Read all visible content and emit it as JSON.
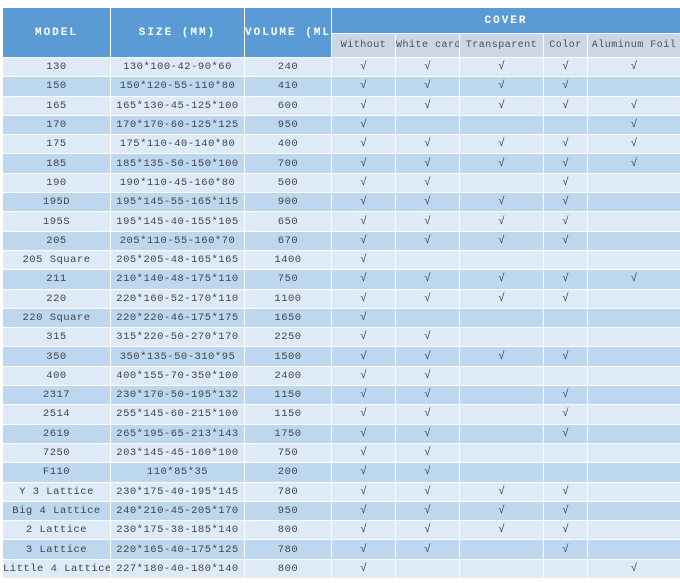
{
  "table": {
    "headers": {
      "model": "MODEL",
      "size": "SIZE (MM)",
      "volume": "VOLUME (ML)",
      "cover": "COVER",
      "cover_options": [
        "Without",
        "White card",
        "Transparent",
        "Color",
        "Aluminum Foil"
      ]
    },
    "check_glyph": "√",
    "rows": [
      {
        "model": "130",
        "size": "130*100-42-90*60",
        "volume": "240",
        "covers": [
          true,
          true,
          true,
          true,
          true
        ]
      },
      {
        "model": "150",
        "size": "150*120-55-110*80",
        "volume": "410",
        "covers": [
          true,
          true,
          true,
          true,
          false
        ]
      },
      {
        "model": "165",
        "size": "165*130-45-125*100",
        "volume": "600",
        "covers": [
          true,
          true,
          true,
          true,
          true
        ]
      },
      {
        "model": "170",
        "size": "170*170-60-125*125",
        "volume": "950",
        "covers": [
          true,
          false,
          false,
          false,
          true
        ]
      },
      {
        "model": "175",
        "size": "175*110-40-140*80",
        "volume": "400",
        "covers": [
          true,
          true,
          true,
          true,
          true
        ]
      },
      {
        "model": "185",
        "size": "185*135-50-150*100",
        "volume": "700",
        "covers": [
          true,
          true,
          true,
          true,
          true
        ]
      },
      {
        "model": "190",
        "size": "190*110-45-160*80",
        "volume": "500",
        "covers": [
          true,
          true,
          false,
          true,
          false
        ]
      },
      {
        "model": "195D",
        "size": "195*145-55-165*115",
        "volume": "900",
        "covers": [
          true,
          true,
          true,
          true,
          false
        ]
      },
      {
        "model": "195S",
        "size": "195*145-40-155*105",
        "volume": "650",
        "covers": [
          true,
          true,
          true,
          true,
          false
        ]
      },
      {
        "model": "205",
        "size": "205*110-55-160*70",
        "volume": "670",
        "covers": [
          true,
          true,
          true,
          true,
          false
        ]
      },
      {
        "model": "205 Square",
        "size": "205*205-48-165*165",
        "volume": "1400",
        "covers": [
          true,
          false,
          false,
          false,
          false
        ]
      },
      {
        "model": "211",
        "size": "210*140-48-175*110",
        "volume": "750",
        "covers": [
          true,
          true,
          true,
          true,
          true
        ]
      },
      {
        "model": "220",
        "size": "220*160-52-170*110",
        "volume": "1100",
        "covers": [
          true,
          true,
          true,
          true,
          false
        ]
      },
      {
        "model": "220 Square",
        "size": "220*220-46-175*175",
        "volume": "1650",
        "covers": [
          true,
          false,
          false,
          false,
          false
        ]
      },
      {
        "model": "315",
        "size": "315*220-50-270*170",
        "volume": "2250",
        "covers": [
          true,
          true,
          false,
          false,
          false
        ]
      },
      {
        "model": "350",
        "size": "350*135-50-310*95",
        "volume": "1500",
        "covers": [
          true,
          true,
          true,
          true,
          false
        ]
      },
      {
        "model": "400",
        "size": "400*155-70-350*100",
        "volume": "2400",
        "covers": [
          true,
          true,
          false,
          false,
          false
        ]
      },
      {
        "model": "2317",
        "size": "230*170-50-195*132",
        "volume": "1150",
        "covers": [
          true,
          true,
          false,
          true,
          false
        ]
      },
      {
        "model": "2514",
        "size": "255*145-60-215*100",
        "volume": "1150",
        "covers": [
          true,
          true,
          false,
          true,
          false
        ]
      },
      {
        "model": "2619",
        "size": "265*195-65-213*143",
        "volume": "1750",
        "covers": [
          true,
          true,
          false,
          true,
          false
        ]
      },
      {
        "model": "7250",
        "size": "203*145-45-160*100",
        "volume": "750",
        "covers": [
          true,
          true,
          false,
          false,
          false
        ]
      },
      {
        "model": "F110",
        "size": "110*85*35",
        "volume": "200",
        "covers": [
          true,
          true,
          false,
          false,
          false
        ]
      },
      {
        "model": "Y 3 Lattice",
        "size": "230*175-40-195*145",
        "volume": "780",
        "covers": [
          true,
          true,
          true,
          true,
          false
        ]
      },
      {
        "model": "Big 4 Lattice",
        "size": "240*210-45-205*170",
        "volume": "950",
        "covers": [
          true,
          true,
          true,
          true,
          false
        ]
      },
      {
        "model": "2 Lattice",
        "size": "230*175-38-185*140",
        "volume": "800",
        "covers": [
          true,
          true,
          true,
          true,
          false
        ]
      },
      {
        "model": "3 Lattice",
        "size": "220*165-40-175*125",
        "volume": "780",
        "covers": [
          true,
          true,
          false,
          true,
          false
        ]
      },
      {
        "model": "Little 4 Lattice",
        "size": "227*180-40-180*140",
        "volume": "800",
        "covers": [
          true,
          false,
          false,
          false,
          true
        ]
      }
    ]
  },
  "colors": {
    "header_blue": "#5B9BD5",
    "subheader_bg": "#CBD8E4",
    "row_light": "#DEEAF6",
    "row_dark": "#BDD7EE",
    "check_color": "#32455a",
    "header_text": "#FFFFFF",
    "body_text": "#3f4650"
  }
}
